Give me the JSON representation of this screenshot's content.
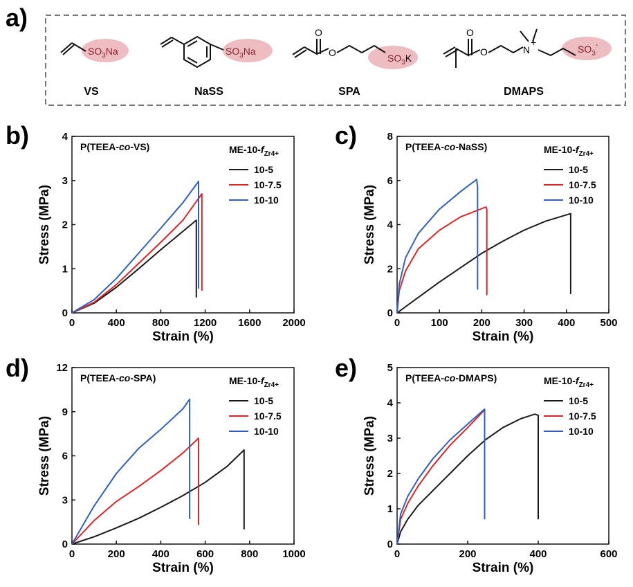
{
  "panel_labels": [
    "a)",
    "b)",
    "c)",
    "d)",
    "e)"
  ],
  "structures": [
    {
      "name": "VS",
      "group": "SO3Na"
    },
    {
      "name": "NaSS",
      "group": "SO3Na"
    },
    {
      "name": "SPA",
      "group": "SO3K"
    },
    {
      "name": "DMAPS",
      "group": "SO3-"
    }
  ],
  "colors": {
    "10-5": "#1a1a1a",
    "10-7.5": "#e02424",
    "10-10": "#2f5fbf",
    "highlight": "#e8a7ad"
  },
  "chart_data": [
    {
      "type": "line",
      "title": "P(TEEA-co-VS)",
      "legend_title": "ME-10-fZr4+",
      "legend_position": "top-right",
      "xlabel": "Strain (%)",
      "ylabel": "Stress (MPa)",
      "xlim": [
        0,
        2000
      ],
      "ylim": [
        0,
        4
      ],
      "xticks": [
        0,
        400,
        800,
        1200,
        1600,
        2000
      ],
      "yticks": [
        0,
        1,
        2,
        3,
        4
      ],
      "series": [
        {
          "name": "10-5",
          "x": [
            0,
            200,
            400,
            600,
            800,
            1000,
            1120,
            1120
          ],
          "y": [
            0,
            0.22,
            0.58,
            1.0,
            1.43,
            1.85,
            2.1,
            0.35
          ]
        },
        {
          "name": "10-7.5",
          "x": [
            0,
            200,
            400,
            600,
            800,
            1000,
            1170,
            1170
          ],
          "y": [
            0,
            0.24,
            0.64,
            1.12,
            1.6,
            2.1,
            2.7,
            0.5
          ]
        },
        {
          "name": "10-10",
          "x": [
            0,
            200,
            400,
            600,
            800,
            1000,
            1140,
            1140
          ],
          "y": [
            0,
            0.3,
            0.78,
            1.35,
            1.92,
            2.5,
            2.98,
            0.55
          ]
        }
      ]
    },
    {
      "type": "line",
      "title": "P(TEEA-co-NaSS)",
      "legend_title": "ME-10-fZr4+",
      "legend_position": "top-right",
      "xlabel": "Strain (%)",
      "ylabel": "Stress (MPa)",
      "xlim": [
        0,
        500
      ],
      "ylim": [
        0,
        8
      ],
      "xticks": [
        0,
        100,
        200,
        300,
        400,
        500
      ],
      "yticks": [
        0,
        2,
        4,
        6,
        8
      ],
      "series": [
        {
          "name": "10-5",
          "x": [
            0,
            50,
            100,
            150,
            200,
            250,
            300,
            350,
            410,
            410
          ],
          "y": [
            0,
            0.7,
            1.4,
            2.05,
            2.7,
            3.25,
            3.75,
            4.15,
            4.5,
            0.85
          ]
        },
        {
          "name": "10-7.5",
          "x": [
            0,
            5,
            20,
            50,
            100,
            150,
            210,
            212,
            212
          ],
          "y": [
            0,
            1.0,
            1.9,
            2.9,
            3.75,
            4.35,
            4.8,
            4.7,
            0.8
          ]
        },
        {
          "name": "10-10",
          "x": [
            0,
            5,
            20,
            50,
            100,
            150,
            188,
            190,
            190
          ],
          "y": [
            0,
            1.3,
            2.5,
            3.6,
            4.7,
            5.5,
            6.05,
            5.7,
            1.05
          ]
        }
      ]
    },
    {
      "type": "line",
      "title": "P(TEEA-co-SPA)",
      "legend_title": "ME-10-fZr4+",
      "legend_position": "top-right",
      "xlabel": "Strain (%)",
      "ylabel": "Stress (MPa)",
      "xlim": [
        0,
        1000
      ],
      "ylim": [
        0,
        12
      ],
      "xticks": [
        0,
        200,
        400,
        600,
        800,
        1000
      ],
      "yticks": [
        0,
        3,
        6,
        9,
        12
      ],
      "series": [
        {
          "name": "10-5",
          "x": [
            0,
            100,
            200,
            300,
            400,
            500,
            600,
            700,
            775,
            775
          ],
          "y": [
            0,
            0.5,
            1.1,
            1.75,
            2.5,
            3.3,
            4.2,
            5.3,
            6.4,
            1.0
          ]
        },
        {
          "name": "10-7.5",
          "x": [
            0,
            100,
            200,
            300,
            400,
            500,
            570,
            570
          ],
          "y": [
            0,
            1.6,
            2.9,
            3.9,
            5.0,
            6.2,
            7.2,
            1.3
          ]
        },
        {
          "name": "10-10",
          "x": [
            0,
            50,
            100,
            200,
            300,
            400,
            500,
            530,
            530
          ],
          "y": [
            0,
            1.3,
            2.6,
            4.8,
            6.5,
            7.8,
            9.2,
            9.85,
            1.7
          ]
        }
      ]
    },
    {
      "type": "line",
      "title": "P(TEEA-co-DMAPS)",
      "legend_title": "ME-10-fZr4+",
      "legend_position": "top-right",
      "xlabel": "Strain (%)",
      "ylabel": "Stress (MPa)",
      "xlim": [
        0,
        600
      ],
      "ylim": [
        0,
        5
      ],
      "xticks": [
        0,
        200,
        400,
        600
      ],
      "yticks": [
        0,
        1,
        2,
        3,
        4,
        5
      ],
      "series": [
        {
          "name": "10-5",
          "x": [
            0,
            10,
            30,
            60,
            100,
            150,
            200,
            250,
            300,
            350,
            390,
            400,
            400
          ],
          "y": [
            0,
            0.35,
            0.7,
            1.1,
            1.5,
            2.0,
            2.5,
            2.95,
            3.3,
            3.55,
            3.68,
            3.65,
            0.7
          ]
        },
        {
          "name": "10-7.5",
          "x": [
            0,
            10,
            30,
            60,
            100,
            150,
            200,
            248,
            248
          ],
          "y": [
            0,
            0.7,
            1.15,
            1.65,
            2.2,
            2.8,
            3.3,
            3.8,
            0.8
          ]
        },
        {
          "name": "10-10",
          "x": [
            0,
            10,
            30,
            60,
            100,
            150,
            200,
            245,
            248,
            248
          ],
          "y": [
            0,
            0.85,
            1.35,
            1.85,
            2.4,
            2.95,
            3.4,
            3.8,
            3.82,
            0.7
          ]
        }
      ]
    }
  ]
}
